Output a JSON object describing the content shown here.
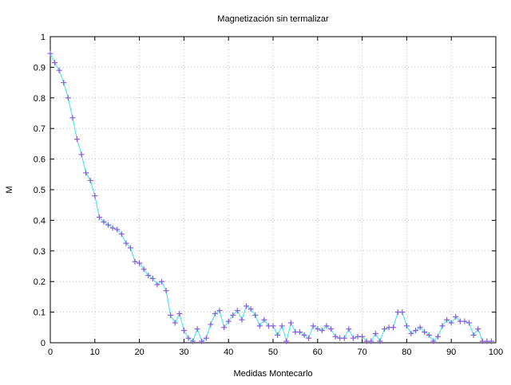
{
  "chart_data": {
    "type": "line",
    "title": "Magnetización sin termalizar",
    "xlabel": "Medidas Montecarlo",
    "ylabel": "M",
    "xlim": [
      0,
      100
    ],
    "ylim": [
      0,
      1
    ],
    "x_ticks": [
      "0",
      "10",
      "20",
      "30",
      "40",
      "50",
      "60",
      "70",
      "80",
      "90",
      "100"
    ],
    "y_ticks": [
      "0",
      "0.1",
      "0.2",
      "0.3",
      "0.4",
      "0.5",
      "0.6",
      "0.7",
      "0.8",
      "0.9",
      "1"
    ],
    "grid": true,
    "colors": {
      "line": "#33e3ee",
      "marker": "#8a5bdc",
      "grid": "#c0c0c0",
      "axis": "#000000"
    },
    "series": [
      {
        "x": [
          0,
          1,
          2,
          3,
          4,
          5,
          6,
          7,
          8,
          9,
          10,
          11,
          12,
          13,
          14,
          15,
          16,
          17,
          18,
          19,
          20,
          21,
          22,
          23,
          24,
          25,
          26,
          27,
          28,
          29,
          30,
          31,
          32,
          33,
          34,
          35,
          36,
          37,
          38,
          39,
          40,
          41,
          42,
          43,
          44,
          45,
          46,
          47,
          48,
          49,
          50,
          51,
          52,
          53,
          54,
          55,
          56,
          57,
          58,
          59,
          60,
          61,
          62,
          63,
          64,
          65,
          66,
          67,
          68,
          69,
          70,
          71,
          72,
          73,
          74,
          75,
          76,
          77,
          78,
          79,
          80,
          81,
          82,
          83,
          84,
          85,
          86,
          87,
          88,
          89,
          90,
          91,
          92,
          93,
          94,
          95,
          96,
          97,
          98,
          99
        ],
        "values": [
          0.945,
          0.915,
          0.89,
          0.85,
          0.8,
          0.735,
          0.665,
          0.615,
          0.555,
          0.53,
          0.48,
          0.41,
          0.395,
          0.385,
          0.375,
          0.37,
          0.355,
          0.325,
          0.31,
          0.265,
          0.26,
          0.24,
          0.22,
          0.21,
          0.19,
          0.2,
          0.17,
          0.09,
          0.065,
          0.095,
          0.04,
          0.015,
          0.005,
          0.045,
          0.005,
          0.015,
          0.06,
          0.095,
          0.105,
          0.05,
          0.07,
          0.09,
          0.105,
          0.075,
          0.12,
          0.11,
          0.09,
          0.055,
          0.075,
          0.055,
          0.055,
          0.025,
          0.055,
          0.005,
          0.065,
          0.035,
          0.035,
          0.025,
          0.015,
          0.055,
          0.045,
          0.04,
          0.055,
          0.045,
          0.02,
          0.015,
          0.015,
          0.045,
          0.015,
          0.02,
          0.02,
          0.005,
          0.005,
          0.03,
          0.005,
          0.045,
          0.05,
          0.05,
          0.1,
          0.1,
          0.055,
          0.03,
          0.04,
          0.05,
          0.035,
          0.025,
          0.005,
          0.02,
          0.055,
          0.075,
          0.065,
          0.085,
          0.07,
          0.07,
          0.065,
          0.025,
          0.045,
          0.005,
          0.005,
          0.005
        ]
      }
    ]
  }
}
